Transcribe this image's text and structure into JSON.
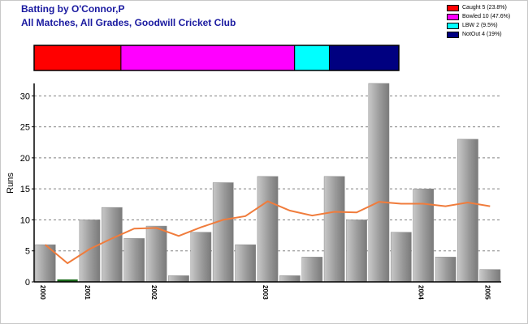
{
  "header": {
    "title_line1": "Batting by O'Connor,P",
    "title_line2": "All Matches, All Grades, Goodwill Cricket Club"
  },
  "legend": [
    {
      "label": "Caught 5 (23.8%)",
      "color": "#ff0000"
    },
    {
      "label": "Bowled 10 (47.6%)",
      "color": "#ff00ff"
    },
    {
      "label": "LBW 2 (9.5%)",
      "color": "#00ffff"
    },
    {
      "label": "NotOut 4 (19%)",
      "color": "#000080"
    }
  ],
  "chart_data": [
    {
      "type": "bar",
      "title": "",
      "stacked_share": [
        {
          "name": "Caught",
          "value": 5,
          "color": "#ff0000"
        },
        {
          "name": "Bowled",
          "value": 10,
          "color": "#ff00ff"
        },
        {
          "name": "LBW",
          "value": 2,
          "color": "#00ffff"
        },
        {
          "name": "NotOut",
          "value": 4,
          "color": "#000080"
        }
      ]
    },
    {
      "type": "bar",
      "ylabel": "Runs",
      "ylim": [
        0,
        32
      ],
      "yticks": [
        0,
        5,
        10,
        15,
        20,
        25,
        30
      ],
      "grid": true,
      "values": [
        6,
        0,
        10,
        12,
        7,
        9,
        1,
        8,
        16,
        6,
        17,
        1,
        4,
        17,
        10,
        32,
        8,
        15,
        4,
        23,
        2
      ],
      "average_line": [
        6,
        3,
        5.3,
        7,
        8.6,
        8.7,
        7.4,
        8.8,
        10,
        10.6,
        13,
        11.5,
        10.7,
        11.3,
        11.2,
        12.9,
        12.6,
        12.6,
        12.2,
        12.8,
        12.2
      ],
      "xtick_labels": [
        {
          "label": "2000",
          "at": 0
        },
        {
          "label": "2001",
          "at": 2
        },
        {
          "label": "2002",
          "at": 5
        },
        {
          "label": "2003",
          "at": 10
        },
        {
          "label": "2004",
          "at": 17
        },
        {
          "label": "2005",
          "at": 20
        }
      ],
      "colors": {
        "bar": "#a0a0a0",
        "zero_bar": "#1a6b1a",
        "average": "#f07c3c",
        "grid": "#808080"
      }
    }
  ]
}
